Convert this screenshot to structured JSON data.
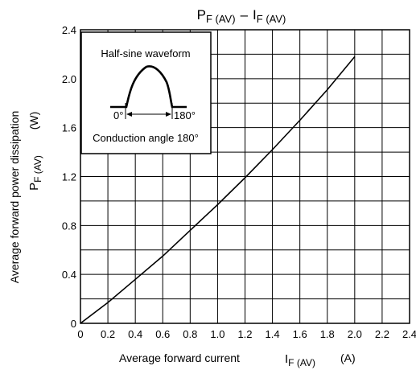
{
  "chart_data": {
    "type": "line",
    "title": {
      "main_left": "P",
      "sub_left": "F (AV)",
      "dash": "–",
      "main_right": "I",
      "sub_right": "F (AV)"
    },
    "xlabel": {
      "text": "Average forward current",
      "symbol": "I",
      "symbol_sub": "F (AV)",
      "unit": "(A)"
    },
    "ylabel": {
      "text": "Average forward power dissipation",
      "symbol": "P",
      "symbol_sub": "F (AV)",
      "unit": "(W)"
    },
    "xlim": [
      0,
      2.4
    ],
    "ylim": [
      0,
      2.4
    ],
    "x_ticks": [
      "0",
      "0.2",
      "0.4",
      "0.6",
      "0.8",
      "1.0",
      "1.2",
      "1.4",
      "1.6",
      "1.8",
      "2.0",
      "2.2",
      "2.4"
    ],
    "y_ticks": [
      "0",
      "0.4",
      "0.8",
      "1.2",
      "1.6",
      "2.0",
      "2.4"
    ],
    "grid": true,
    "series": [
      {
        "x": [
          0,
          0.2,
          0.4,
          0.6,
          0.8,
          1.0,
          1.2,
          1.4,
          1.6,
          1.8,
          2.0
        ],
        "y": [
          0,
          0.17,
          0.36,
          0.55,
          0.76,
          0.97,
          1.19,
          1.42,
          1.66,
          1.91,
          2.18
        ]
      }
    ],
    "inset": {
      "title": "Half-sine waveform",
      "label_start": "0°",
      "label_end": "180°",
      "caption": "Conduction angle 180°"
    },
    "colors": {
      "line": "#000000",
      "grid": "#000000",
      "background": "#ffffff"
    }
  }
}
